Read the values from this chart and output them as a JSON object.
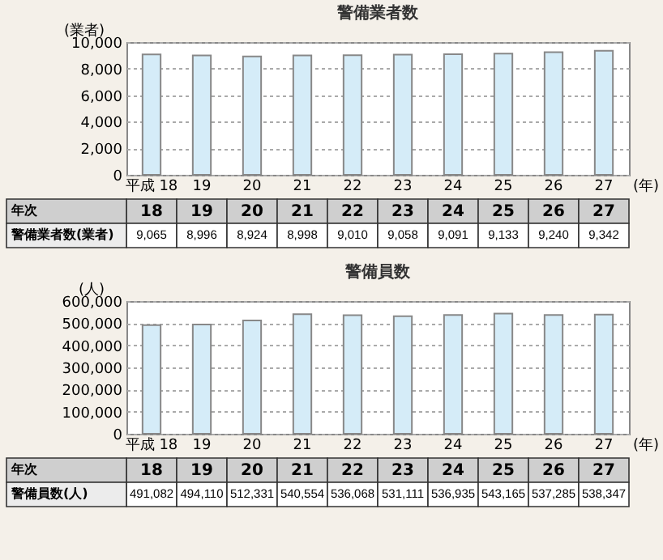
{
  "chart_data": [
    {
      "type": "bar",
      "title": "警備業者数",
      "ylabel": "(業者)",
      "xlabel": "(年)",
      "categories": [
        "平成 18",
        "19",
        "20",
        "21",
        "22",
        "23",
        "24",
        "25",
        "26",
        "27"
      ],
      "values": [
        9065,
        8996,
        8924,
        8998,
        9010,
        9058,
        9091,
        9133,
        9240,
        9342
      ],
      "color": "#d5ecf8",
      "ylim": [
        0,
        10000
      ],
      "yticks": [
        0,
        {
          "value": 2000,
          "label": "2,000"
        },
        {
          "value": 4000,
          "label": "4,000"
        },
        {
          "value": 6000,
          "label": "6,000"
        },
        {
          "value": 8000,
          "label": "8,000"
        },
        {
          "value": 10000,
          "label": "10,000"
        }
      ],
      "grid": "y",
      "value_labels": [
        "9,065",
        "8,996",
        "8,924",
        "8,998",
        "9,010",
        "9,058",
        "9,091",
        "9,133",
        "9,240",
        "9,342"
      ],
      "annotations": [
        "年次",
        "18",
        "19",
        "20",
        "21",
        "22",
        "23",
        "24",
        "25",
        "26",
        "27",
        "警備業者数(業者)"
      ]
    },
    {
      "type": "bar",
      "title": "警備員数",
      "ylabel": "(人)",
      "xlabel": "(年)",
      "categories": [
        "平成 18",
        "19",
        "20",
        "21",
        "22",
        "23",
        "24",
        "25",
        "26",
        "27"
      ],
      "values": [
        491082,
        494110,
        512331,
        540554,
        536068,
        531111,
        536935,
        543165,
        537285,
        538347
      ],
      "color": "#d5ecf8",
      "ylim": [
        0,
        600000
      ],
      "yticks": [
        0,
        {
          "value": 100000,
          "label": "100,000"
        },
        {
          "value": 200000,
          "label": "200,000"
        },
        {
          "value": 300000,
          "label": "300,000"
        },
        {
          "value": 400000,
          "label": "400,000"
        },
        {
          "value": 500000,
          "label": "500,000"
        },
        {
          "value": 600000,
          "label": "600,000"
        }
      ],
      "grid": "y",
      "value_labels": [
        "491,082",
        "494,110",
        "512,331",
        "540,554",
        "536,068",
        "531,111",
        "536,935",
        "543,165",
        "537,285",
        "538,347"
      ],
      "annotations": [
        "年次",
        "18",
        "19",
        "20",
        "21",
        "22",
        "23",
        "24",
        "25",
        "26",
        "27",
        "警備員数(人)"
      ]
    }
  ]
}
